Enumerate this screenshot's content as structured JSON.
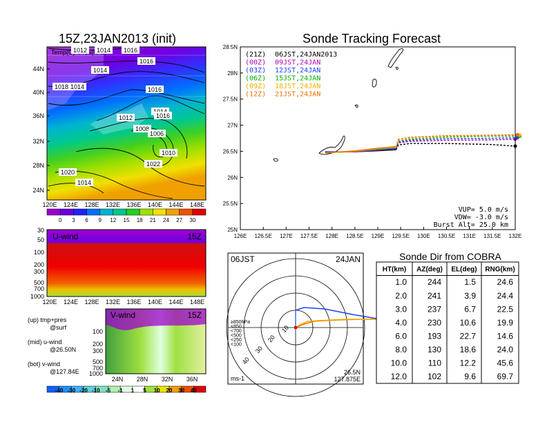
{
  "left_panel": {
    "title": "15Z,23JAN2013 (init)",
    "map_label": "Temp(C)+Pres(hPa)",
    "lat_ticks": [
      "44N",
      "40N",
      "36N",
      "32N",
      "28N",
      "24N"
    ],
    "lon_ticks": [
      "120E",
      "124E",
      "128E",
      "132E",
      "136E",
      "140E",
      "144E",
      "148E"
    ],
    "isobar_labels": [
      "1012",
      "1014",
      "1016",
      "1014",
      "1018",
      "1014",
      "1016",
      "1016",
      "1014",
      "1016",
      "1012",
      "1008",
      "1006",
      "1010",
      "1022",
      "1020",
      "1014"
    ],
    "temp_colorbar": {
      "labels": [
        "0",
        "3",
        "6",
        "9",
        "12",
        "15",
        "18",
        "21",
        "24",
        "27",
        "30"
      ],
      "colors": [
        "#9b00d0",
        "#6a00e0",
        "#2020ff",
        "#0070ff",
        "#00b4d0",
        "#00c890",
        "#20d020",
        "#a0e000",
        "#f0e000",
        "#f0a000",
        "#f05000",
        "#e00000"
      ]
    },
    "uwind": {
      "label": "U-wind",
      "time": "15Z",
      "y_ticks": [
        "30",
        "50",
        "100",
        "200",
        "300",
        "500",
        "700",
        "1000"
      ],
      "x_ticks": [
        "120E",
        "124E",
        "128E",
        "132E",
        "136E",
        "140E",
        "144E",
        "148E"
      ]
    },
    "vwind": {
      "label": "V-wind",
      "time": "15Z",
      "y_ticks": [
        "100",
        "200",
        "300",
        "500",
        "700",
        "1000"
      ],
      "x_ticks": [
        "24N",
        "28N",
        "32N",
        "36N"
      ]
    },
    "legend_text": {
      "up": "(up) tmp+pres",
      "up2": "@surf",
      "mid": "(mid) u-wind",
      "mid2": "@26.50N",
      "bot": "(bot) v-wind",
      "bot2": "@127.84E"
    },
    "wind_colorbar": {
      "labels": [
        "-40",
        "-30",
        "-20",
        "-10",
        "-5",
        "-1",
        "1",
        "5",
        "10",
        "20",
        "30",
        "40"
      ],
      "colors": [
        "#1060ff",
        "#2090ff",
        "#40b0ff",
        "#60d0e0",
        "#80e0c0",
        "#b0f0b0",
        "#e0ffe0",
        "#ffffff",
        "#a0e040",
        "#f0e000",
        "#f0a000",
        "#f05000",
        "#e00000"
      ]
    }
  },
  "tracking": {
    "title": "Sonde Tracking Forecast",
    "lat_ticks": [
      "28.5N",
      "28N",
      "27.5N",
      "27N",
      "26.5N",
      "26N",
      "25.5N",
      "25N"
    ],
    "lon_ticks": [
      "126E",
      "126.5E",
      "127E",
      "127.5E",
      "128E",
      "128.5E",
      "129E",
      "129.5E",
      "130E",
      "130.5E",
      "131E",
      "131.5E",
      "132E"
    ],
    "legend": [
      {
        "code": "(21Z)",
        "text": "06JST,24JAN2013",
        "color": "#000000"
      },
      {
        "code": "(00Z)",
        "text": "09JST,24JAN",
        "color": "#b000b0"
      },
      {
        "code": "(03Z)",
        "text": "12JST,24JAN",
        "color": "#2040ff"
      },
      {
        "code": "(06Z)",
        "text": "15JST,24JAN",
        "color": "#00b000"
      },
      {
        "code": "(09Z)",
        "text": "18JST,24JAN",
        "color": "#f0b000"
      },
      {
        "code": "(12Z)",
        "text": "21JST,24JAN",
        "color": "#f07000"
      }
    ],
    "params": [
      "VUP= 5.0 m/s",
      "VDW= -3.0 m/s",
      "Burst Alt= 25.0 km"
    ]
  },
  "chart_data": [
    {
      "type": "line",
      "title": "Sonde Tracking Forecast",
      "xlabel": "",
      "ylabel": "",
      "xlim": [
        126,
        132
      ],
      "ylim": [
        25,
        28.5
      ],
      "series": [
        {
          "name": "(21Z) 06JST,24JAN2013",
          "color": "#000000",
          "dashed": true,
          "x": [
            127.85,
            128.5,
            129.0,
            129.4,
            129.45,
            129.7,
            130.5,
            131.5,
            132.0
          ],
          "y": [
            26.49,
            26.49,
            26.51,
            26.53,
            26.62,
            26.65,
            26.65,
            26.63,
            26.6
          ]
        },
        {
          "name": "(00Z) 09JST,24JAN",
          "color": "#b000b0",
          "dashed": true,
          "x": [
            127.85,
            128.5,
            129.0,
            129.4,
            129.45,
            129.7,
            130.5,
            131.5,
            132.0
          ],
          "y": [
            26.48,
            26.49,
            26.52,
            26.55,
            26.66,
            26.69,
            26.71,
            26.72,
            26.73
          ]
        },
        {
          "name": "(03Z) 12JST,24JAN",
          "color": "#2040ff",
          "dashed": true,
          "x": [
            127.85,
            128.5,
            129.0,
            129.4,
            129.45,
            129.7,
            130.5,
            131.5,
            132.05
          ],
          "y": [
            26.48,
            26.5,
            26.53,
            26.56,
            26.68,
            26.71,
            26.74,
            26.75,
            26.76
          ]
        },
        {
          "name": "(06Z) 15JST,24JAN",
          "color": "#00b000",
          "dashed": true,
          "x": [
            127.85,
            128.5,
            129.0,
            129.4,
            129.45,
            129.7,
            130.5,
            131.5,
            132.1
          ],
          "y": [
            26.47,
            26.5,
            26.54,
            26.57,
            26.7,
            26.73,
            26.77,
            26.79,
            26.79
          ]
        },
        {
          "name": "(09Z) 18JST,24JAN",
          "color": "#f0b000",
          "dashed": true,
          "x": [
            127.85,
            128.5,
            129.0,
            129.4,
            129.45,
            129.7,
            130.5,
            131.5,
            132.1
          ],
          "y": [
            26.47,
            26.5,
            26.55,
            26.58,
            26.71,
            26.75,
            26.79,
            26.8,
            26.81
          ]
        },
        {
          "name": "(12Z) 21JST,24JAN",
          "color": "#f07000",
          "dashed": true,
          "x": [
            127.85,
            128.5,
            129.0,
            129.4,
            129.45,
            129.7,
            130.5,
            131.5,
            132.05
          ],
          "y": [
            26.47,
            26.51,
            26.56,
            26.59,
            26.73,
            26.77,
            26.8,
            26.81,
            26.82
          ]
        }
      ]
    },
    {
      "type": "table",
      "title": "Sonde Dir from COBRA",
      "columns": [
        "HT(km)",
        "AZ(deg)",
        "EL(deg)",
        "RNG(km)"
      ],
      "rows": [
        [
          "1.0",
          "244",
          "1.5",
          "24.6"
        ],
        [
          "2.0",
          "241",
          "3.9",
          "24.4"
        ],
        [
          "3.0",
          "237",
          "6.7",
          "22.5"
        ],
        [
          "4.0",
          "230",
          "10.6",
          "19.9"
        ],
        [
          "6.0",
          "193",
          "22.7",
          "14.6"
        ],
        [
          "8.0",
          "130",
          "18.6",
          "24.0"
        ],
        [
          "10.0",
          "110",
          "12.2",
          "45.6"
        ],
        [
          "12.0",
          "102",
          "9.6",
          "69.7"
        ]
      ]
    }
  ],
  "hodograph": {
    "time_left": "06JST",
    "date_right": "24JAN",
    "ring_labels": [
      "10",
      "20",
      "30",
      "40"
    ],
    "level_labels": [
      {
        "text": "≥850hPa",
        "color": "#e00000"
      },
      {
        "text": "<850",
        "color": "#f07000"
      },
      {
        "text": "<700",
        "color": "#f0b000"
      },
      {
        "text": "<500",
        "color": "#00b000"
      },
      {
        "text": "<250",
        "color": "#00b4d0"
      },
      {
        "text": "<100",
        "color": "#2040ff"
      }
    ],
    "unit": "ms-1",
    "loc_lat": "26.5N",
    "loc_lon": "127.875E"
  }
}
